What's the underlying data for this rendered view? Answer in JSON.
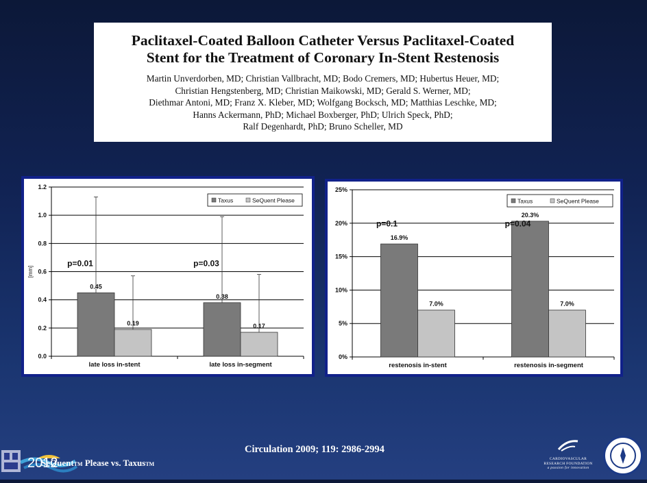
{
  "paper": {
    "title_line1": "Paclitaxel-Coated Balloon Catheter Versus Paclitaxel-Coated",
    "title_line2": "Stent for the Treatment of Coronary In-Stent Restenosis",
    "authors": [
      "Martin Unverdorben, MD; Christian Vallbracht, MD; Bodo Cremers, MD; Hubertus Heuer, MD;",
      "Christian Hengstenberg, MD; Christian Maikowski, MD; Gerald S. Werner, MD;",
      "Diethmar Antoni, MD; Franz X. Kleber, MD; Wolfgang Bocksch, MD; Matthias Leschke, MD;",
      "Hanns Ackermann, PhD; Michael Boxberger, PhD; Ulrich Speck, PhD;",
      "Ralf Degenhardt, PhD; Bruno Scheller, MD"
    ]
  },
  "footer": {
    "citation": "Circulation 2009; 119: 2986-2994",
    "product_seq": "SeQuent",
    "product_tm": "TM",
    "product_rest": " Please vs. Taxus",
    "product_tm2": "TM",
    "year": "2012",
    "crf_lines": [
      "CARDIOVASCULAR",
      "RESEARCH FOUNDATION",
      "a passion for innovation"
    ]
  },
  "colors": {
    "taxus": "#7a7a7a",
    "sequent": "#c4c4c4",
    "frame": "#11218a"
  },
  "chart_data": [
    {
      "type": "bar",
      "categories": [
        "late loss in-stent",
        "late loss in-segment"
      ],
      "series": [
        {
          "name": "Taxus",
          "values": [
            0.45,
            0.38
          ],
          "error_upper": [
            1.13,
            0.99
          ]
        },
        {
          "name": "SeQuent Please",
          "values": [
            0.19,
            0.17
          ],
          "error_upper": [
            0.57,
            0.58
          ]
        }
      ],
      "value_labels": [
        [
          "0.45",
          "0.38"
        ],
        [
          "0.19",
          "0.17"
        ]
      ],
      "ylabel": "[mm]",
      "ylim": [
        0,
        1.2
      ],
      "yticks": [
        "0.0",
        "0.2",
        "0.4",
        "0.6",
        "0.8",
        "1.0",
        "1.2"
      ],
      "grid": true,
      "legend": "top-right",
      "annotations": [
        "p=0.01",
        "p=0.03"
      ]
    },
    {
      "type": "bar",
      "categories": [
        "restenosis in-stent",
        "restenosis in-segment"
      ],
      "series": [
        {
          "name": "Taxus",
          "values": [
            16.9,
            20.3
          ]
        },
        {
          "name": "SeQuent Please",
          "values": [
            7.0,
            7.0
          ]
        }
      ],
      "value_labels": [
        [
          "16.9%",
          "20.3%"
        ],
        [
          "7.0%",
          "7.0%"
        ]
      ],
      "ylim": [
        0,
        25
      ],
      "yticks": [
        "0%",
        "5%",
        "10%",
        "15%",
        "20%",
        "25%"
      ],
      "grid": true,
      "legend": "top-right",
      "annotations": [
        "p=0.1",
        "p=0.04"
      ]
    }
  ]
}
